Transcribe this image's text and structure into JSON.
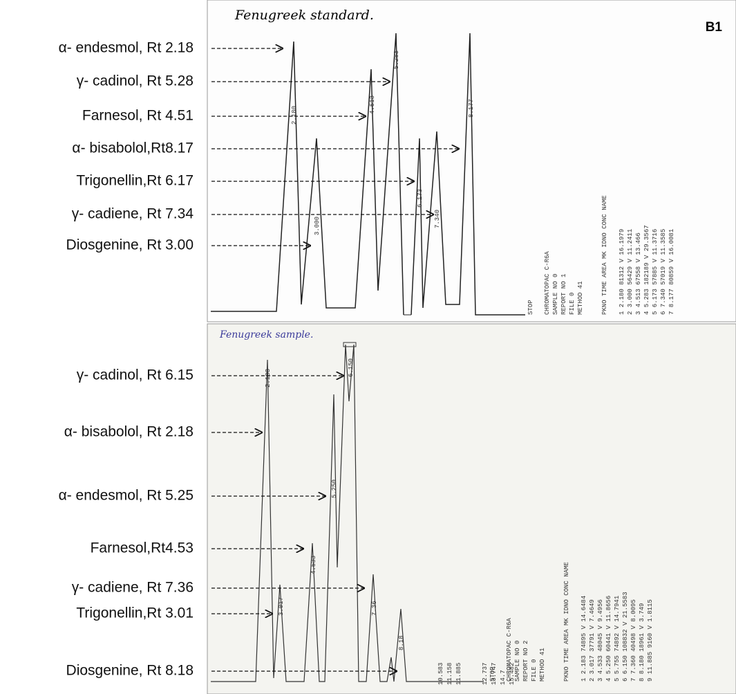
{
  "figure_label": "B1",
  "standard": {
    "title": "Fenugreek standard.",
    "labels": [
      "α- endesmol, Rt 2.18",
      "γ- cadinol, Rt 5.28",
      "Farnesol, Rt 4.51",
      "α- bisabolol,Rt8.17",
      "Trigonellin,Rt 6.17",
      "γ- cadiene, Rt 7.34",
      "Diosgenine,  Rt 3.00"
    ],
    "peak_labels": [
      "2.180",
      "3.000",
      "4.513",
      "5.283",
      "6.173",
      "7.340",
      "8.177"
    ],
    "report_header": [
      "STOP",
      "CHROMATOPAC  C-R6A",
      "SAMPLE NO  0",
      "REPORT NO  1",
      "FILE  0",
      "METHOD  41"
    ],
    "report_columns": "PKNO   TIME    AREA   MK  IDNO   CONC    NAME",
    "report_rows": [
      "1   2.180   81312  V   16.1979",
      "2   3.000   56429  V   11.2411",
      "3   4.513   67558  V   13.466",
      "4   5.283  182189  V   29.3567",
      "5   6.173   57885  V   11.3716",
      "6   7.340   57019  V   11.3585",
      "7   8.177   80859  V   16.0081"
    ]
  },
  "sample": {
    "title": "Fenugreek sample.",
    "labels": [
      "γ- cadinol, Rt 6.15",
      "α- bisabolol, Rt 2.18",
      "α- endesmol, Rt 5.25",
      "Farnesol,Rt4.53",
      "γ- cadiene, Rt 7.36",
      "Trigonellin,Rt 3.01",
      "Diosgenine, Rt 8.18"
    ],
    "peak_labels": [
      "2.183",
      "3.017",
      "4.533",
      "5.250",
      "6.150",
      "7.36",
      "8.18"
    ],
    "stop_times": [
      "10.583",
      "11.158",
      "11.885",
      "12.737",
      "13.747",
      "14.7",
      "15.482"
    ],
    "report_header": [
      "STOP",
      "CHROMATOPAC  C-R6A",
      "SAMPLE NO  0",
      "REPORT NO  2",
      "FILE  0",
      "METHOD  41"
    ],
    "report_columns": "PKNO   TIME    AREA   MK  IDNO   CONC    NAME",
    "report_rows": [
      "1   2.183   74895  V   14.6484",
      "2   3.017   37791  V    7.4649",
      "3   4.533   48045  V    9.4956",
      "4   5.250   60441  V   11.8656",
      "5   5.755   74892  V   14.7941",
      "6   6.150  108832  V   21.5583",
      "7   7.360   40498  V    8.0095",
      "8   8.180   18961  V    3.749",
      "9  11.885    9160  V    1.8115"
    ]
  }
}
